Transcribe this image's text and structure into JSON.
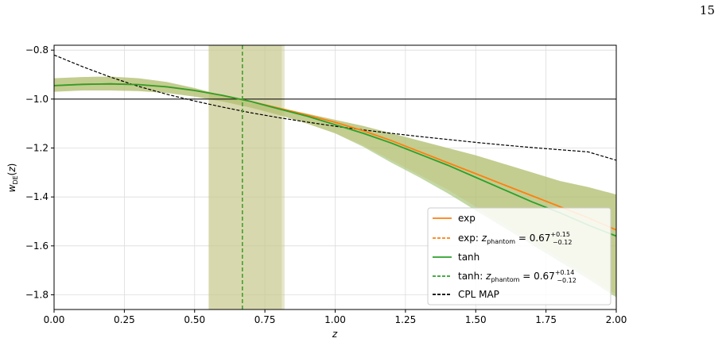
{
  "page": {
    "number": "15"
  },
  "colors": {
    "exp": "#ff7f0e",
    "tanh": "#2ca02c",
    "cpl": "#000000",
    "exp_band": "#ffbb78",
    "tanh_band": "#98df8a",
    "vertical_band": "#c8c88c"
  },
  "chart_data": {
    "type": "line",
    "xlabel": "z",
    "ylabel": "w_DE(z)",
    "xlim": [
      0.0,
      2.0
    ],
    "ylim": [
      -1.86,
      -0.78
    ],
    "grid": true,
    "legend_placement": "lower-right",
    "x_ticks": [
      "0.00",
      "0.25",
      "0.50",
      "0.75",
      "1.00",
      "1.25",
      "1.50",
      "1.75",
      "2.00"
    ],
    "y_ticks": [
      "−0.8",
      "−1.0",
      "−1.2",
      "−1.4",
      "−1.6",
      "−1.8"
    ],
    "x_tick_values": [
      0,
      0.25,
      0.5,
      0.75,
      1.0,
      1.25,
      1.5,
      1.75,
      2.0
    ],
    "y_tick_values": [
      -0.8,
      -1.0,
      -1.2,
      -1.4,
      -1.6,
      -1.8
    ],
    "reference_line_y": -1.0,
    "x": [
      0.0,
      0.1,
      0.2,
      0.3,
      0.4,
      0.5,
      0.6,
      0.7,
      0.8,
      0.9,
      1.0,
      1.1,
      1.2,
      1.3,
      1.4,
      1.5,
      1.6,
      1.7,
      1.8,
      1.9,
      2.0
    ],
    "series": [
      {
        "name": "exp",
        "values": [
          -0.945,
          -0.94,
          -0.938,
          -0.941,
          -0.95,
          -0.965,
          -0.985,
          -1.01,
          -1.037,
          -1.065,
          -1.095,
          -1.13,
          -1.17,
          -1.215,
          -1.26,
          -1.305,
          -1.35,
          -1.395,
          -1.44,
          -1.485,
          -1.535
        ],
        "band_upper": [
          -0.915,
          -0.91,
          -0.908,
          -0.915,
          -0.93,
          -0.955,
          -0.985,
          -1.015,
          -1.035,
          -1.06,
          -1.085,
          -1.11,
          -1.14,
          -1.17,
          -1.2,
          -1.23,
          -1.265,
          -1.3,
          -1.335,
          -1.36,
          -1.39
        ],
        "band_lower": [
          -0.97,
          -0.965,
          -0.965,
          -0.967,
          -0.975,
          -0.99,
          -1.01,
          -1.035,
          -1.065,
          -1.1,
          -1.14,
          -1.19,
          -1.25,
          -1.31,
          -1.37,
          -1.44,
          -1.51,
          -1.58,
          -1.65,
          -1.72,
          -1.8
        ]
      },
      {
        "name": "tanh",
        "values": [
          -0.945,
          -0.94,
          -0.938,
          -0.941,
          -0.95,
          -0.965,
          -0.985,
          -1.01,
          -1.04,
          -1.07,
          -1.105,
          -1.14,
          -1.18,
          -1.225,
          -1.27,
          -1.32,
          -1.37,
          -1.42,
          -1.465,
          -1.515,
          -1.56
        ],
        "band_upper": [
          -0.915,
          -0.91,
          -0.908,
          -0.915,
          -0.93,
          -0.955,
          -0.985,
          -1.015,
          -1.035,
          -1.06,
          -1.085,
          -1.11,
          -1.14,
          -1.17,
          -1.2,
          -1.23,
          -1.265,
          -1.3,
          -1.335,
          -1.36,
          -1.39
        ],
        "band_lower": [
          -0.97,
          -0.965,
          -0.965,
          -0.967,
          -0.975,
          -0.99,
          -1.01,
          -1.035,
          -1.065,
          -1.1,
          -1.14,
          -1.195,
          -1.26,
          -1.32,
          -1.385,
          -1.455,
          -1.525,
          -1.595,
          -1.665,
          -1.735,
          -1.81
        ]
      },
      {
        "name": "CPL MAP",
        "values": [
          -0.82,
          -0.867,
          -0.91,
          -0.948,
          -0.98,
          -1.008,
          -1.033,
          -1.056,
          -1.076,
          -1.094,
          -1.111,
          -1.126,
          -1.14,
          -1.153,
          -1.165,
          -1.177,
          -1.188,
          -1.198,
          -1.207,
          -1.216,
          -1.25
        ]
      }
    ],
    "vertical_lines": [
      {
        "name": "exp: z_phantom",
        "x": 0.67,
        "band": [
          0.55,
          0.82
        ]
      },
      {
        "name": "tanh: z_phantom",
        "x": 0.67,
        "band": [
          0.55,
          0.81
        ]
      }
    ],
    "legend": [
      {
        "label": "exp",
        "math": ""
      },
      {
        "label": "exp: ",
        "math": "z",
        "sub": "phantom",
        "value": " = 0.67",
        "sup": "+0.15",
        "inf": "−0.12"
      },
      {
        "label": "tanh",
        "math": ""
      },
      {
        "label": "tanh: ",
        "math": "z",
        "sub": "phantom",
        "value": " = 0.67",
        "sup": "+0.14",
        "inf": "−0.12"
      },
      {
        "label": "CPL MAP",
        "math": ""
      }
    ]
  }
}
